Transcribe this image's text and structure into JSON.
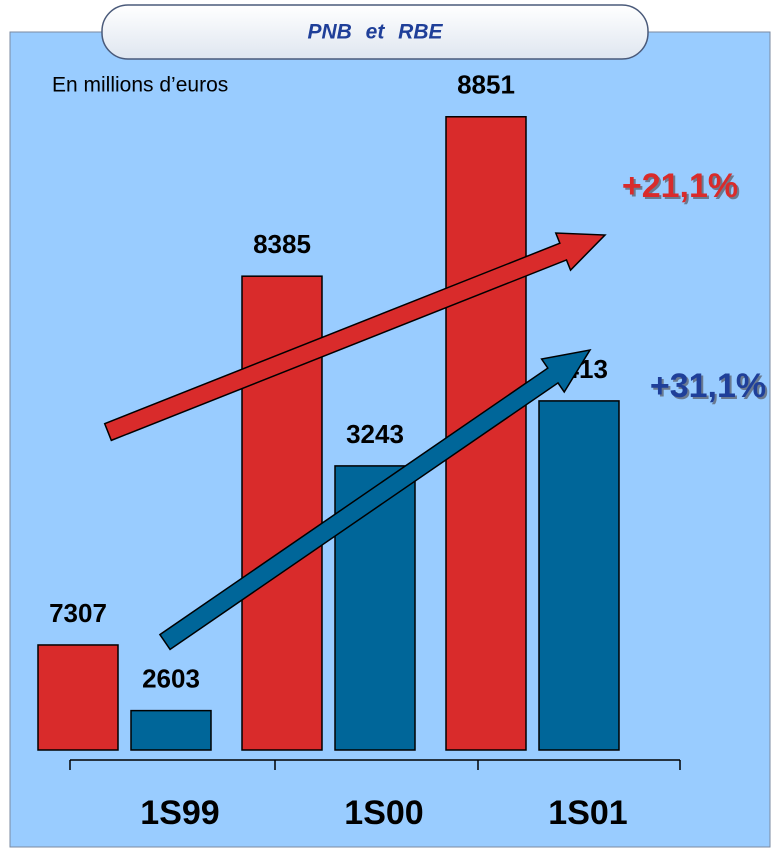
{
  "chart_data": {
    "type": "bar",
    "title": "PNB et RBE",
    "subtitle": "En millions d’euros",
    "categories": [
      "1S99",
      "1S00",
      "1S01"
    ],
    "series": [
      {
        "color": "#d92b2b",
        "values": [
          7307,
          8385,
          8851
        ]
      },
      {
        "color": "#006699",
        "values": [
          2603,
          3243,
          3413
        ],
        "axis": "y2"
      }
    ],
    "ylim": [
      7000,
      8900
    ],
    "y2lim": [
      2500,
      4200
    ],
    "annotations": [
      {
        "text": "+21,1%",
        "color": "#d92b2b"
      },
      {
        "text": "+31,1%",
        "color": "#1f3f99"
      }
    ],
    "grid": false
  }
}
